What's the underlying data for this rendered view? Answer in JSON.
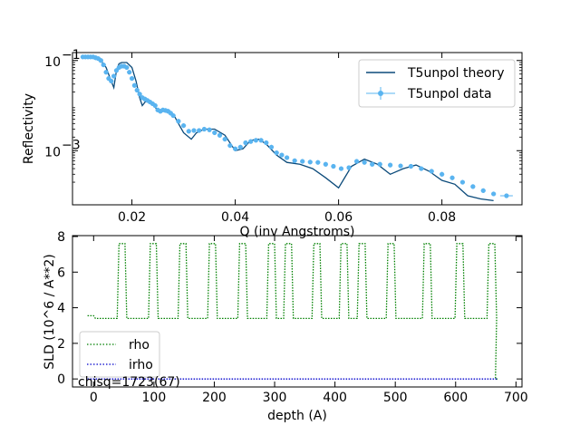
{
  "chart_data": [
    {
      "type": "line",
      "xlabel": "Q (inv Angstroms)",
      "ylabel": "Reflectivity",
      "yscale": "log",
      "xlim": [
        0.0085,
        0.0955
      ],
      "ylim": [
        6.3e-05,
        0.15
      ],
      "xticks": [
        0.02,
        0.04,
        0.06,
        0.08
      ],
      "xtick_labels": [
        "0.02",
        "0.04",
        "0.06",
        "0.08"
      ],
      "yticks": [
        0.1,
        0.001
      ],
      "ytick_labels_base": [
        "10",
        "10"
      ],
      "ytick_labels_exp": [
        "−1",
        "−3"
      ],
      "legend": {
        "position": "top-right",
        "entries": [
          "T5unpol theory",
          "T5unpol data"
        ]
      },
      "series": [
        {
          "name": "T5unpol theory",
          "color": "#0b4a7a",
          "style": "line",
          "x": [
            0.0105,
            0.012,
            0.013,
            0.014,
            0.015,
            0.0158,
            0.0165,
            0.017,
            0.0175,
            0.018,
            0.019,
            0.02,
            0.0208,
            0.0215,
            0.022,
            0.0228,
            0.0235,
            0.025,
            0.0265,
            0.028,
            0.029,
            0.03,
            0.0315,
            0.0325,
            0.034,
            0.036,
            0.038,
            0.04,
            0.0415,
            0.043,
            0.0445,
            0.046,
            0.048,
            0.05,
            0.0525,
            0.055,
            0.0575,
            0.06,
            0.0625,
            0.065,
            0.0675,
            0.07,
            0.0725,
            0.075,
            0.0775,
            0.08,
            0.0825,
            0.085,
            0.0875,
            0.09
          ],
          "y": [
            0.12,
            0.12,
            0.115,
            0.1,
            0.07,
            0.04,
            0.025,
            0.06,
            0.085,
            0.09,
            0.09,
            0.07,
            0.035,
            0.015,
            0.01,
            0.013,
            0.012,
            0.008,
            0.008,
            0.0065,
            0.004,
            0.0025,
            0.0018,
            0.0025,
            0.003,
            0.003,
            0.0022,
            0.001,
            0.0011,
            0.0017,
            0.0018,
            0.0014,
            0.0008,
            0.00055,
            0.0005,
            0.0004,
            0.00025,
            0.00015,
            0.00045,
            0.00065,
            0.0005,
            0.0003,
            0.0004,
            0.00048,
            0.00035,
            0.00022,
            0.00018,
            0.0001,
            8.5e-05,
            7.8e-05
          ]
        },
        {
          "name": "T5unpol data",
          "color": "#5ab4f0",
          "style": "markers+errorbars",
          "x": [
            0.0105,
            0.011,
            0.0115,
            0.012,
            0.0125,
            0.013,
            0.0135,
            0.014,
            0.0145,
            0.015,
            0.0155,
            0.016,
            0.0165,
            0.017,
            0.0175,
            0.018,
            0.0185,
            0.019,
            0.0195,
            0.02,
            0.0205,
            0.021,
            0.0215,
            0.022,
            0.0225,
            0.023,
            0.0235,
            0.024,
            0.0245,
            0.025,
            0.0255,
            0.026,
            0.0265,
            0.027,
            0.0275,
            0.028,
            0.029,
            0.03,
            0.031,
            0.032,
            0.033,
            0.034,
            0.035,
            0.036,
            0.037,
            0.038,
            0.039,
            0.04,
            0.041,
            0.042,
            0.043,
            0.044,
            0.045,
            0.046,
            0.047,
            0.048,
            0.049,
            0.05,
            0.0515,
            0.053,
            0.0545,
            0.056,
            0.0575,
            0.059,
            0.0605,
            0.062,
            0.0635,
            0.065,
            0.0665,
            0.068,
            0.07,
            0.072,
            0.074,
            0.076,
            0.078,
            0.08,
            0.082,
            0.084,
            0.086,
            0.088,
            0.09,
            0.0925
          ],
          "y": [
            0.12,
            0.12,
            0.12,
            0.12,
            0.12,
            0.115,
            0.11,
            0.1,
            0.08,
            0.055,
            0.04,
            0.035,
            0.045,
            0.06,
            0.07,
            0.075,
            0.075,
            0.07,
            0.055,
            0.04,
            0.028,
            0.022,
            0.018,
            0.015,
            0.014,
            0.013,
            0.012,
            0.011,
            0.01,
            0.008,
            0.0075,
            0.008,
            0.0078,
            0.0075,
            0.0068,
            0.006,
            0.0045,
            0.0036,
            0.0027,
            0.0028,
            0.0028,
            0.003,
            0.0029,
            0.0025,
            0.0022,
            0.0018,
            0.0013,
            0.0011,
            0.0012,
            0.0015,
            0.0016,
            0.0017,
            0.0017,
            0.0015,
            0.0012,
            0.0009,
            0.0008,
            0.0007,
            0.0006,
            0.00058,
            0.00056,
            0.00055,
            0.0005,
            0.00045,
            0.0004,
            0.00042,
            0.00058,
            0.00055,
            0.0005,
            0.0005,
            0.00048,
            0.00046,
            0.00045,
            0.0004,
            0.00035,
            0.0003,
            0.00025,
            0.0002,
            0.00016,
            0.00013,
            0.00011,
            0.0001
          ]
        }
      ]
    },
    {
      "type": "line",
      "xlabel": "depth (A)",
      "ylabel": "SLD (10^6 / A**2)",
      "xlim": [
        -35,
        710
      ],
      "ylim": [
        -0.45,
        8.05
      ],
      "xticks": [
        0,
        100,
        200,
        300,
        400,
        500,
        600,
        700
      ],
      "xtick_labels": [
        "0",
        "100",
        "200",
        "300",
        "400",
        "500",
        "600",
        "700"
      ],
      "yticks": [
        0,
        2,
        4,
        6,
        8
      ],
      "ytick_labels": [
        "0",
        "2",
        "4",
        "6",
        "8"
      ],
      "annotation": "chisq=1723(67)",
      "legend": {
        "position": "bottom-left",
        "entries": [
          "rho",
          "irho"
        ]
      },
      "series": [
        {
          "name": "rho",
          "color": "#008000",
          "style": "dotted",
          "base_value": 3.4,
          "start_value": 3.55,
          "peak_value": 7.6,
          "end_drop_depth": 665,
          "end_value": 0,
          "end_depth": 670,
          "layers": [
            [
              42,
              52
            ],
            [
              94,
              104
            ],
            [
              143,
              153
            ],
            [
              192,
              202
            ],
            [
              242,
              252
            ],
            [
              290,
              300
            ],
            [
              318,
              328
            ],
            [
              365,
              375
            ],
            [
              410,
              420
            ],
            [
              440,
              450
            ],
            [
              488,
              498
            ],
            [
              548,
              558
            ],
            [
              602,
              612
            ],
            [
              655,
              665
            ]
          ]
        },
        {
          "name": "irho",
          "color": "#0000cc",
          "style": "dotted",
          "x": [
            -10,
            670
          ],
          "y": [
            0,
            0
          ]
        }
      ]
    }
  ]
}
